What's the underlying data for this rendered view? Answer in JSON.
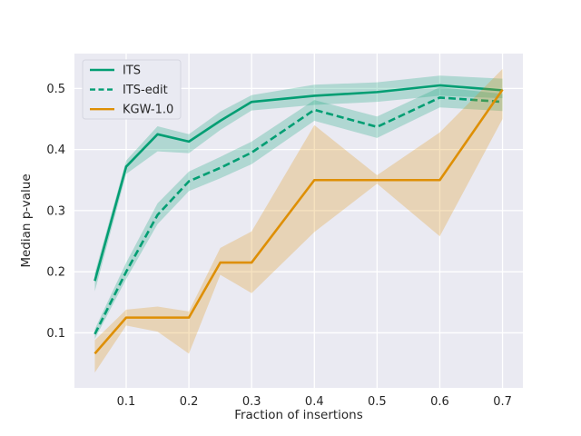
{
  "style": {
    "figure_bg": "#ffffff",
    "axes_bg": "#eaeaf2",
    "grid_color": "#ffffff",
    "text_color": "#262626",
    "teal": "#029e73",
    "orange": "#de8f05",
    "band_opacity": 0.25,
    "legend_bg": "#e9eaf2",
    "legend_border": "#d5d6e0"
  },
  "chart_data": {
    "type": "line",
    "title": "",
    "xlabel": "Fraction of insertions",
    "ylabel": "Median p-value",
    "grid": true,
    "legend_position": "upper left",
    "xlim": [
      0.0175,
      0.7325
    ],
    "ylim": [
      0.01,
      0.557
    ],
    "xticks": [
      "0.1",
      "0.2",
      "0.3",
      "0.4",
      "0.5",
      "0.6",
      "0.7"
    ],
    "xtick_values": [
      0.1,
      0.2,
      0.3,
      0.4,
      0.5,
      0.6,
      0.7
    ],
    "yticks": [
      "0.1",
      "0.2",
      "0.3",
      "0.4",
      "0.5"
    ],
    "ytick_values": [
      0.1,
      0.2,
      0.3,
      0.4,
      0.5
    ],
    "x": [
      0.05,
      0.1,
      0.15,
      0.2,
      0.25,
      0.3,
      0.4,
      0.5,
      0.6,
      0.7
    ],
    "series": [
      {
        "name": "ITS",
        "color": "#029e73",
        "line_style": "solid",
        "values": [
          0.185,
          0.372,
          0.425,
          0.413,
          0.447,
          0.478,
          0.488,
          0.494,
          0.505,
          0.497
        ],
        "band_low": [
          0.168,
          0.36,
          0.397,
          0.394,
          0.432,
          0.464,
          0.473,
          0.478,
          0.488,
          0.484
        ],
        "band_high": [
          0.198,
          0.382,
          0.438,
          0.425,
          0.462,
          0.489,
          0.506,
          0.51,
          0.521,
          0.516
        ]
      },
      {
        "name": "ITS-edit",
        "color": "#029e73",
        "line_style": "dashed",
        "values": [
          0.098,
          0.2,
          0.293,
          0.348,
          0.37,
          0.395,
          0.465,
          0.437,
          0.485,
          0.478
        ],
        "band_low": [
          0.09,
          0.188,
          0.278,
          0.332,
          0.353,
          0.376,
          0.447,
          0.419,
          0.469,
          0.463
        ],
        "band_high": [
          0.106,
          0.215,
          0.312,
          0.364,
          0.388,
          0.413,
          0.481,
          0.454,
          0.502,
          0.491
        ]
      },
      {
        "name": "KGW-1.0",
        "color": "#de8f05",
        "line_style": "solid",
        "values": [
          0.066,
          0.125,
          0.125,
          0.125,
          0.215,
          0.215,
          0.35,
          0.35,
          0.35,
          0.498
        ],
        "band_low": [
          0.035,
          0.112,
          0.102,
          0.066,
          0.195,
          0.165,
          0.265,
          0.344,
          0.258,
          0.45
        ],
        "band_high": [
          0.088,
          0.138,
          0.143,
          0.135,
          0.239,
          0.266,
          0.44,
          0.358,
          0.428,
          0.532
        ]
      }
    ]
  }
}
